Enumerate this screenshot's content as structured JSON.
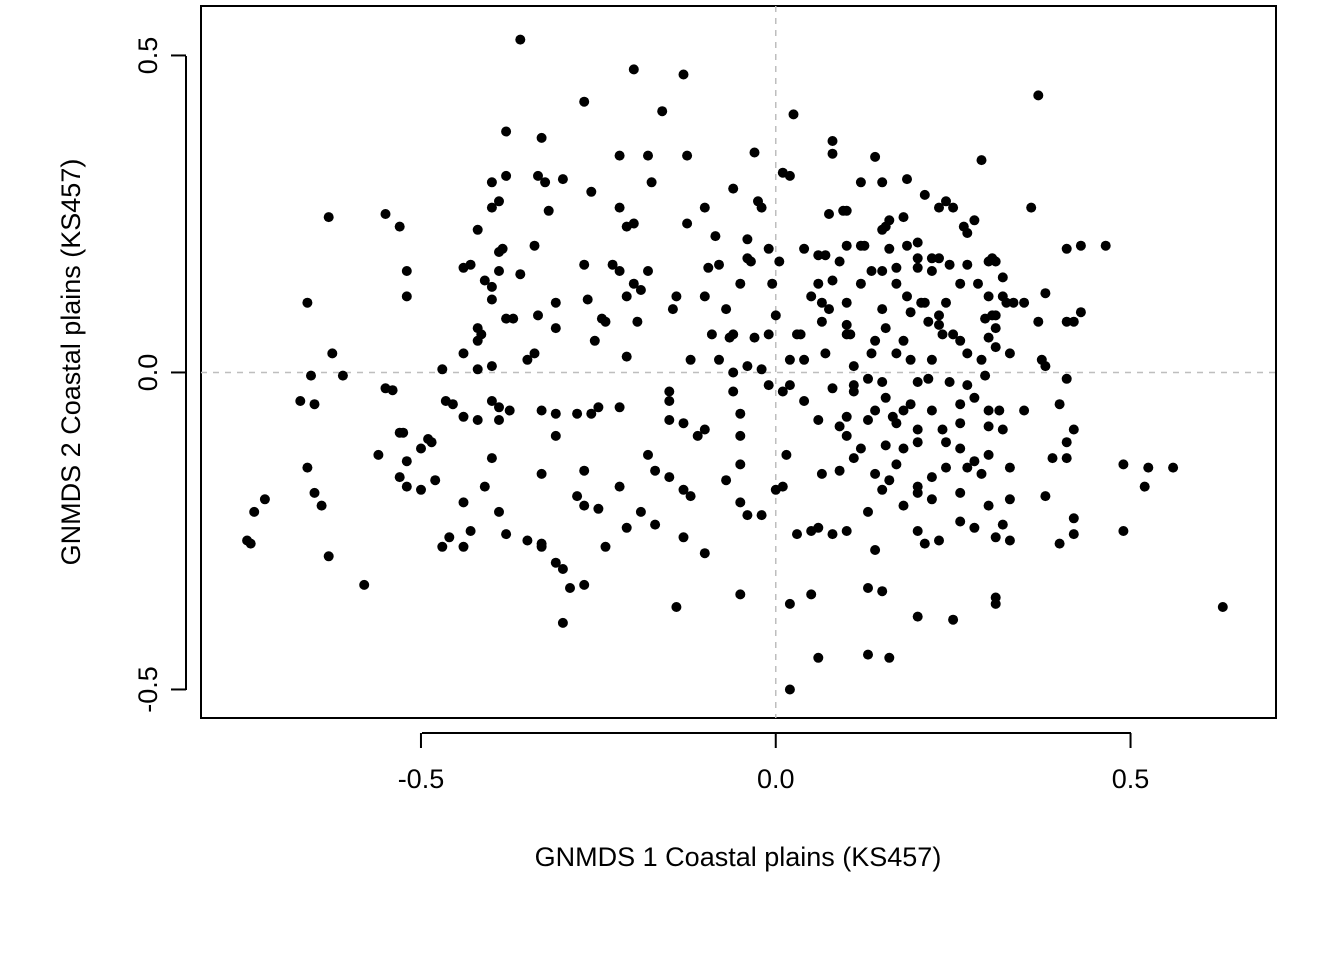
{
  "chart_data": {
    "type": "scatter",
    "title": "",
    "xlabel": "GNMDS 1 Coastal plains (KS457)",
    "ylabel": "GNMDS 2 Coastal plains (KS457)",
    "xlim": [
      -0.81,
      0.705
    ],
    "ylim": [
      -0.545,
      0.578
    ],
    "xticks": [
      -0.5,
      0.0,
      0.5
    ],
    "yticks": [
      -0.5,
      0.0,
      0.5
    ],
    "xtick_labels": [
      "-0.5",
      "0.0",
      "0.5"
    ],
    "ytick_labels": [
      "-0.5",
      "0.0",
      "0.5"
    ],
    "reference_lines": {
      "x": 0.0,
      "y": 0.0,
      "style": "dashed",
      "color": "#bebebe"
    },
    "grid": false,
    "marker_color": "#000000",
    "points": [
      [
        -0.36,
        0.525
      ],
      [
        -0.2,
        0.478
      ],
      [
        -0.13,
        0.47
      ],
      [
        0.37,
        0.437
      ],
      [
        -0.27,
        0.427
      ],
      [
        -0.16,
        0.412
      ],
      [
        0.025,
        0.407
      ],
      [
        -0.38,
        0.38
      ],
      [
        -0.33,
        0.37
      ],
      [
        0.08,
        0.365
      ],
      [
        -0.22,
        0.342
      ],
      [
        -0.18,
        0.342
      ],
      [
        -0.125,
        0.342
      ],
      [
        -0.03,
        0.347
      ],
      [
        0.08,
        0.345
      ],
      [
        0.14,
        0.34
      ],
      [
        0.29,
        0.335
      ],
      [
        -0.38,
        0.31
      ],
      [
        -0.4,
        0.3
      ],
      [
        -0.335,
        0.31
      ],
      [
        -0.325,
        0.3
      ],
      [
        -0.3,
        0.305
      ],
      [
        -0.175,
        0.3
      ],
      [
        0.01,
        0.315
      ],
      [
        0.02,
        0.31
      ],
      [
        0.12,
        0.3
      ],
      [
        0.15,
        0.3
      ],
      [
        0.185,
        0.305
      ],
      [
        -0.26,
        0.285
      ],
      [
        -0.06,
        0.29
      ],
      [
        -0.025,
        0.27
      ],
      [
        -0.02,
        0.26
      ],
      [
        0.21,
        0.28
      ],
      [
        0.24,
        0.27
      ],
      [
        0.25,
        0.26
      ],
      [
        -0.39,
        0.27
      ],
      [
        -0.4,
        0.26
      ],
      [
        -0.32,
        0.255
      ],
      [
        -0.22,
        0.26
      ],
      [
        -0.21,
        0.23
      ],
      [
        -0.2,
        0.235
      ],
      [
        -0.125,
        0.235
      ],
      [
        -0.1,
        0.26
      ],
      [
        0.075,
        0.25
      ],
      [
        0.095,
        0.255
      ],
      [
        0.1,
        0.255
      ],
      [
        0.16,
        0.24
      ],
      [
        0.18,
        0.245
      ],
      [
        0.23,
        0.26
      ],
      [
        0.28,
        0.24
      ],
      [
        0.36,
        0.26
      ],
      [
        -0.63,
        0.245
      ],
      [
        -0.55,
        0.25
      ],
      [
        -0.53,
        0.23
      ],
      [
        -0.42,
        0.225
      ],
      [
        -0.34,
        0.2
      ],
      [
        -0.39,
        0.19
      ],
      [
        -0.385,
        0.195
      ],
      [
        -0.085,
        0.215
      ],
      [
        -0.04,
        0.21
      ],
      [
        0.15,
        0.225
      ],
      [
        0.155,
        0.23
      ],
      [
        0.2,
        0.205
      ],
      [
        0.27,
        0.22
      ],
      [
        0.265,
        0.23
      ],
      [
        0.41,
        0.195
      ],
      [
        0.43,
        0.2
      ],
      [
        0.465,
        0.2
      ],
      [
        -0.01,
        0.195
      ],
      [
        0.04,
        0.195
      ],
      [
        0.06,
        0.185
      ],
      [
        0.07,
        0.185
      ],
      [
        0.1,
        0.2
      ],
      [
        0.12,
        0.2
      ],
      [
        0.125,
        0.2
      ],
      [
        0.16,
        0.195
      ],
      [
        0.185,
        0.2
      ],
      [
        0.2,
        0.18
      ],
      [
        0.22,
        0.18
      ],
      [
        0.245,
        0.17
      ],
      [
        0.27,
        0.17
      ],
      [
        0.3,
        0.175
      ],
      [
        0.31,
        0.175
      ],
      [
        0.305,
        0.18
      ],
      [
        -0.52,
        0.16
      ],
      [
        -0.44,
        0.165
      ],
      [
        -0.43,
        0.17
      ],
      [
        -0.39,
        0.16
      ],
      [
        -0.36,
        0.155
      ],
      [
        -0.27,
        0.17
      ],
      [
        -0.23,
        0.17
      ],
      [
        -0.22,
        0.16
      ],
      [
        -0.18,
        0.16
      ],
      [
        -0.095,
        0.165
      ],
      [
        -0.08,
        0.17
      ],
      [
        -0.04,
        0.18
      ],
      [
        -0.035,
        0.175
      ],
      [
        0.005,
        0.175
      ],
      [
        0.09,
        0.175
      ],
      [
        0.135,
        0.16
      ],
      [
        0.15,
        0.16
      ],
      [
        0.17,
        0.165
      ],
      [
        0.2,
        0.165
      ],
      [
        0.22,
        0.16
      ],
      [
        0.23,
        0.18
      ],
      [
        -0.41,
        0.145
      ],
      [
        -0.4,
        0.135
      ],
      [
        -0.2,
        0.14
      ],
      [
        -0.19,
        0.13
      ],
      [
        -0.05,
        0.14
      ],
      [
        -0.005,
        0.14
      ],
      [
        0.06,
        0.14
      ],
      [
        0.08,
        0.145
      ],
      [
        0.12,
        0.14
      ],
      [
        0.17,
        0.14
      ],
      [
        0.26,
        0.14
      ],
      [
        0.285,
        0.14
      ],
      [
        0.32,
        0.15
      ],
      [
        0.38,
        0.125
      ],
      [
        -0.66,
        0.11
      ],
      [
        -0.52,
        0.12
      ],
      [
        -0.4,
        0.115
      ],
      [
        -0.31,
        0.11
      ],
      [
        -0.265,
        0.115
      ],
      [
        -0.21,
        0.12
      ],
      [
        -0.14,
        0.12
      ],
      [
        -0.1,
        0.12
      ],
      [
        0.05,
        0.12
      ],
      [
        0.065,
        0.11
      ],
      [
        0.075,
        0.1
      ],
      [
        0.1,
        0.11
      ],
      [
        0.15,
        0.1
      ],
      [
        0.185,
        0.12
      ],
      [
        0.205,
        0.11
      ],
      [
        0.21,
        0.11
      ],
      [
        0.24,
        0.11
      ],
      [
        0.3,
        0.12
      ],
      [
        0.32,
        0.12
      ],
      [
        0.325,
        0.11
      ],
      [
        0.335,
        0.11
      ],
      [
        0.35,
        0.11
      ],
      [
        -0.38,
        0.085
      ],
      [
        -0.37,
        0.085
      ],
      [
        -0.335,
        0.09
      ],
      [
        -0.245,
        0.085
      ],
      [
        -0.24,
        0.08
      ],
      [
        -0.195,
        0.08
      ],
      [
        -0.145,
        0.1
      ],
      [
        -0.07,
        0.1
      ],
      [
        0.0,
        0.09
      ],
      [
        0.065,
        0.08
      ],
      [
        0.1,
        0.075
      ],
      [
        0.105,
        0.06
      ],
      [
        0.19,
        0.095
      ],
      [
        0.215,
        0.08
      ],
      [
        0.23,
        0.075
      ],
      [
        0.23,
        0.09
      ],
      [
        0.295,
        0.085
      ],
      [
        0.305,
        0.09
      ],
      [
        0.31,
        0.09
      ],
      [
        0.37,
        0.08
      ],
      [
        0.42,
        0.08
      ],
      [
        0.43,
        0.095
      ],
      [
        -0.42,
        0.07
      ],
      [
        -0.415,
        0.06
      ],
      [
        -0.44,
        0.03
      ],
      [
        -0.31,
        0.07
      ],
      [
        -0.255,
        0.05
      ],
      [
        -0.09,
        0.06
      ],
      [
        -0.065,
        0.055
      ],
      [
        -0.06,
        0.06
      ],
      [
        -0.03,
        0.055
      ],
      [
        -0.01,
        0.06
      ],
      [
        0.03,
        0.06
      ],
      [
        0.035,
        0.06
      ],
      [
        0.1,
        0.06
      ],
      [
        0.14,
        0.05
      ],
      [
        0.155,
        0.07
      ],
      [
        0.18,
        0.05
      ],
      [
        0.235,
        0.06
      ],
      [
        0.25,
        0.06
      ],
      [
        0.26,
        0.05
      ],
      [
        0.3,
        0.055
      ],
      [
        0.31,
        0.07
      ],
      [
        0.41,
        0.08
      ],
      [
        -0.42,
        0.05
      ],
      [
        -0.4,
        0.01
      ],
      [
        -0.34,
        0.03
      ],
      [
        -0.35,
        0.02
      ],
      [
        -0.21,
        0.025
      ],
      [
        -0.12,
        0.02
      ],
      [
        -0.08,
        0.02
      ],
      [
        -0.04,
        0.01
      ],
      [
        0.02,
        0.02
      ],
      [
        0.04,
        0.02
      ],
      [
        0.07,
        0.03
      ],
      [
        0.11,
        0.01
      ],
      [
        0.135,
        0.03
      ],
      [
        0.17,
        0.03
      ],
      [
        0.19,
        0.02
      ],
      [
        0.22,
        0.02
      ],
      [
        0.27,
        0.03
      ],
      [
        0.29,
        0.02
      ],
      [
        0.31,
        0.04
      ],
      [
        0.33,
        0.03
      ],
      [
        0.375,
        0.02
      ],
      [
        0.38,
        0.01
      ],
      [
        -0.625,
        0.03
      ],
      [
        -0.655,
        -0.005
      ],
      [
        -0.61,
        -0.005
      ],
      [
        -0.47,
        0.005
      ],
      [
        -0.42,
        0.005
      ],
      [
        -0.06,
        0.0
      ],
      [
        -0.02,
        0.005
      ],
      [
        0.02,
        -0.02
      ],
      [
        0.08,
        -0.025
      ],
      [
        0.11,
        -0.02
      ],
      [
        0.13,
        -0.01
      ],
      [
        0.15,
        -0.015
      ],
      [
        0.2,
        -0.015
      ],
      [
        0.215,
        -0.01
      ],
      [
        0.245,
        -0.015
      ],
      [
        0.27,
        -0.02
      ],
      [
        0.295,
        -0.005
      ],
      [
        0.41,
        -0.01
      ],
      [
        -0.67,
        -0.045
      ],
      [
        -0.65,
        -0.05
      ],
      [
        -0.55,
        -0.025
      ],
      [
        -0.54,
        -0.028
      ],
      [
        -0.465,
        -0.045
      ],
      [
        -0.455,
        -0.05
      ],
      [
        -0.44,
        -0.07
      ],
      [
        -0.4,
        -0.045
      ],
      [
        -0.39,
        -0.055
      ],
      [
        -0.375,
        -0.06
      ],
      [
        -0.33,
        -0.06
      ],
      [
        -0.25,
        -0.055
      ],
      [
        -0.26,
        -0.065
      ],
      [
        -0.15,
        -0.03
      ],
      [
        -0.15,
        -0.045
      ],
      [
        -0.06,
        -0.03
      ],
      [
        -0.01,
        -0.02
      ],
      [
        0.01,
        -0.03
      ],
      [
        0.04,
        -0.045
      ],
      [
        0.11,
        -0.03
      ],
      [
        0.14,
        -0.06
      ],
      [
        0.155,
        -0.04
      ],
      [
        0.18,
        -0.06
      ],
      [
        0.19,
        -0.05
      ],
      [
        0.22,
        -0.06
      ],
      [
        0.26,
        -0.05
      ],
      [
        0.28,
        -0.04
      ],
      [
        0.3,
        -0.06
      ],
      [
        0.315,
        -0.06
      ],
      [
        0.35,
        -0.06
      ],
      [
        0.4,
        -0.05
      ],
      [
        -0.53,
        -0.095
      ],
      [
        -0.525,
        -0.095
      ],
      [
        -0.49,
        -0.105
      ],
      [
        -0.485,
        -0.11
      ],
      [
        -0.42,
        -0.075
      ],
      [
        -0.39,
        -0.075
      ],
      [
        -0.31,
        -0.065
      ],
      [
        -0.28,
        -0.065
      ],
      [
        -0.22,
        -0.055
      ],
      [
        -0.15,
        -0.075
      ],
      [
        -0.1,
        -0.09
      ],
      [
        -0.05,
        -0.065
      ],
      [
        0.06,
        -0.075
      ],
      [
        0.09,
        -0.085
      ],
      [
        0.1,
        -0.07
      ],
      [
        0.13,
        -0.075
      ],
      [
        0.165,
        -0.07
      ],
      [
        0.17,
        -0.08
      ],
      [
        0.2,
        -0.09
      ],
      [
        0.235,
        -0.09
      ],
      [
        0.26,
        -0.08
      ],
      [
        0.3,
        -0.085
      ],
      [
        0.32,
        -0.09
      ],
      [
        0.42,
        -0.09
      ],
      [
        -0.56,
        -0.13
      ],
      [
        -0.52,
        -0.14
      ],
      [
        -0.5,
        -0.12
      ],
      [
        -0.4,
        -0.135
      ],
      [
        -0.31,
        -0.1
      ],
      [
        -0.13,
        -0.08
      ],
      [
        -0.11,
        -0.1
      ],
      [
        -0.05,
        -0.1
      ],
      [
        0.1,
        -0.1
      ],
      [
        0.12,
        -0.12
      ],
      [
        0.155,
        -0.115
      ],
      [
        0.18,
        -0.12
      ],
      [
        0.2,
        -0.11
      ],
      [
        0.24,
        -0.11
      ],
      [
        0.26,
        -0.12
      ],
      [
        0.28,
        -0.14
      ],
      [
        0.3,
        -0.13
      ],
      [
        0.41,
        -0.11
      ],
      [
        0.39,
        -0.135
      ],
      [
        0.41,
        -0.135
      ],
      [
        -0.66,
        -0.15
      ],
      [
        -0.53,
        -0.165
      ],
      [
        -0.52,
        -0.18
      ],
      [
        -0.44,
        -0.205
      ],
      [
        -0.41,
        -0.18
      ],
      [
        -0.33,
        -0.16
      ],
      [
        -0.27,
        -0.155
      ],
      [
        -0.18,
        -0.13
      ],
      [
        -0.17,
        -0.155
      ],
      [
        -0.05,
        -0.145
      ],
      [
        0.015,
        -0.13
      ],
      [
        0.065,
        -0.16
      ],
      [
        0.09,
        -0.155
      ],
      [
        0.11,
        -0.135
      ],
      [
        0.14,
        -0.16
      ],
      [
        0.17,
        -0.145
      ],
      [
        0.22,
        -0.165
      ],
      [
        0.24,
        -0.15
      ],
      [
        0.27,
        -0.15
      ],
      [
        0.29,
        -0.16
      ],
      [
        0.33,
        -0.15
      ],
      [
        0.49,
        -0.145
      ],
      [
        0.525,
        -0.15
      ],
      [
        0.56,
        -0.15
      ],
      [
        -0.72,
        -0.2
      ],
      [
        -0.735,
        -0.22
      ],
      [
        -0.65,
        -0.19
      ],
      [
        -0.64,
        -0.21
      ],
      [
        -0.5,
        -0.185
      ],
      [
        -0.48,
        -0.17
      ],
      [
        -0.39,
        -0.22
      ],
      [
        -0.28,
        -0.195
      ],
      [
        -0.27,
        -0.21
      ],
      [
        -0.25,
        -0.215
      ],
      [
        -0.22,
        -0.18
      ],
      [
        -0.19,
        -0.22
      ],
      [
        -0.15,
        -0.165
      ],
      [
        -0.13,
        -0.185
      ],
      [
        -0.12,
        -0.195
      ],
      [
        -0.07,
        -0.17
      ],
      [
        -0.05,
        -0.205
      ],
      [
        -0.04,
        -0.225
      ],
      [
        0.0,
        -0.185
      ],
      [
        0.01,
        -0.18
      ],
      [
        0.15,
        -0.185
      ],
      [
        0.16,
        -0.17
      ],
      [
        0.2,
        -0.19
      ],
      [
        0.2,
        -0.18
      ],
      [
        0.22,
        -0.2
      ],
      [
        0.26,
        -0.19
      ],
      [
        0.3,
        -0.21
      ],
      [
        0.33,
        -0.2
      ],
      [
        0.38,
        -0.195
      ],
      [
        0.42,
        -0.23
      ],
      [
        0.52,
        -0.18
      ],
      [
        -0.745,
        -0.265
      ],
      [
        -0.74,
        -0.27
      ],
      [
        -0.63,
        -0.29
      ],
      [
        -0.58,
        -0.335
      ],
      [
        -0.47,
        -0.275
      ],
      [
        -0.46,
        -0.26
      ],
      [
        -0.44,
        -0.275
      ],
      [
        -0.43,
        -0.25
      ],
      [
        -0.38,
        -0.255
      ],
      [
        -0.35,
        -0.265
      ],
      [
        -0.33,
        -0.27
      ],
      [
        -0.33,
        -0.275
      ],
      [
        -0.31,
        -0.3
      ],
      [
        -0.3,
        -0.31
      ],
      [
        -0.29,
        -0.34
      ],
      [
        -0.27,
        -0.335
      ],
      [
        -0.24,
        -0.275
      ],
      [
        -0.21,
        -0.245
      ],
      [
        -0.17,
        -0.24
      ],
      [
        -0.13,
        -0.26
      ],
      [
        -0.1,
        -0.285
      ],
      [
        -0.02,
        -0.225
      ],
      [
        0.03,
        -0.255
      ],
      [
        0.05,
        -0.25
      ],
      [
        0.06,
        -0.245
      ],
      [
        0.08,
        -0.255
      ],
      [
        0.1,
        -0.25
      ],
      [
        0.13,
        -0.22
      ],
      [
        0.14,
        -0.28
      ],
      [
        0.18,
        -0.21
      ],
      [
        0.2,
        -0.25
      ],
      [
        0.21,
        -0.27
      ],
      [
        0.23,
        -0.265
      ],
      [
        0.26,
        -0.235
      ],
      [
        0.28,
        -0.245
      ],
      [
        0.31,
        -0.26
      ],
      [
        0.32,
        -0.24
      ],
      [
        0.33,
        -0.265
      ],
      [
        0.4,
        -0.27
      ],
      [
        0.42,
        -0.255
      ],
      [
        0.49,
        -0.25
      ],
      [
        -0.14,
        -0.37
      ],
      [
        -0.05,
        -0.35
      ],
      [
        0.02,
        -0.365
      ],
      [
        0.05,
        -0.35
      ],
      [
        0.13,
        -0.34
      ],
      [
        0.15,
        -0.345
      ],
      [
        0.2,
        -0.385
      ],
      [
        0.25,
        -0.39
      ],
      [
        0.31,
        -0.355
      ],
      [
        0.31,
        -0.365
      ],
      [
        0.63,
        -0.37
      ],
      [
        -0.3,
        -0.395
      ],
      [
        0.02,
        -0.5
      ],
      [
        0.06,
        -0.45
      ],
      [
        0.13,
        -0.445
      ],
      [
        0.16,
        -0.45
      ]
    ]
  }
}
